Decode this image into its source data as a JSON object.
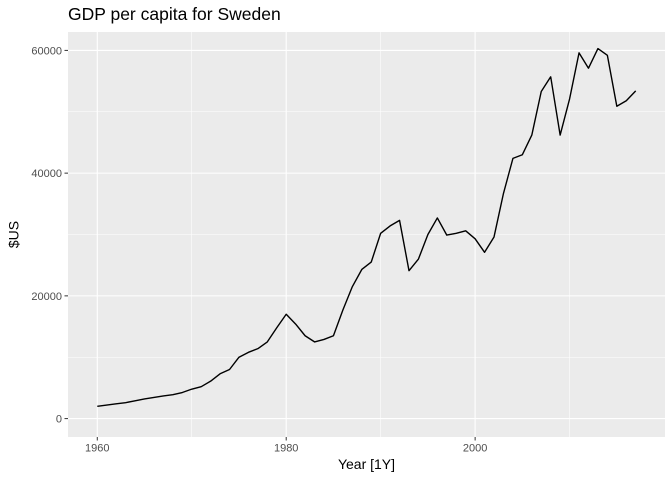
{
  "chart_data": {
    "type": "line",
    "title": "GDP per capita for Sweden",
    "xlabel": "Year [1Y]",
    "ylabel": "$US",
    "xlim": [
      1956.9,
      2020.1
    ],
    "ylim": [
      -3000,
      63000
    ],
    "x_ticks": [
      1960,
      1980,
      2000
    ],
    "x_tick_labels": [
      "1960",
      "1980",
      "2000"
    ],
    "y_ticks": [
      0,
      20000,
      40000,
      60000
    ],
    "y_tick_labels": [
      "0",
      "20000",
      "40000",
      "60000"
    ],
    "grid": true,
    "legend": "none",
    "colors": {
      "panel": "#ebebeb",
      "grid": "#ffffff",
      "line": "#000000"
    },
    "series": [
      {
        "x": [
          1960,
          1961,
          1962,
          1963,
          1964,
          1965,
          1966,
          1967,
          1968,
          1969,
          1970,
          1971,
          1972,
          1973,
          1974,
          1975,
          1976,
          1977,
          1978,
          1979,
          1980,
          1981,
          1982,
          1983,
          1984,
          1985,
          1986,
          1987,
          1988,
          1989,
          1990,
          1991,
          1992,
          1993,
          1994,
          1995,
          1996,
          1997,
          1998,
          1999,
          2000,
          2001,
          2002,
          2003,
          2004,
          2005,
          2006,
          2007,
          2008,
          2009,
          2010,
          2011,
          2012,
          2013,
          2014,
          2015,
          2016,
          2017
        ],
        "values": [
          2000,
          2200,
          2400,
          2600,
          2900,
          3200,
          3450,
          3700,
          3900,
          4250,
          4800,
          5200,
          6100,
          7300,
          8000,
          10000,
          10800,
          11400,
          12500,
          14800,
          17000,
          15400,
          13500,
          12500,
          12900,
          13500,
          17700,
          21500,
          24300,
          25500,
          30200,
          31400,
          32300,
          24100,
          26000,
          30000,
          32700,
          29900,
          30200,
          30600,
          29300,
          27100,
          29600,
          36700,
          42400,
          43000,
          46200,
          53300,
          55700,
          46200,
          52100,
          59600,
          57100,
          60300,
          59200,
          50900,
          51800,
          53400
        ]
      }
    ]
  }
}
